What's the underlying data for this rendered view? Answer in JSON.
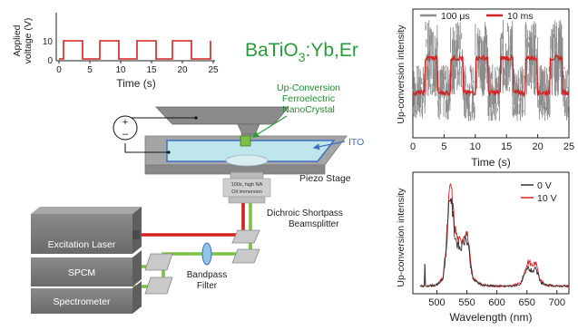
{
  "voltage_inset": {
    "ylabel_line1": "Applied",
    "ylabel_line2": "voltage (V)",
    "xlabel": "Time (s)",
    "x_ticks": [
      "0",
      "5",
      "10",
      "15",
      "20",
      "25"
    ],
    "y_ticks": [
      "0",
      "10"
    ]
  },
  "material": {
    "main": "BaTiO",
    "sub": "3",
    "rest": ":Yb,Er"
  },
  "labels": {
    "nanocrystal_1": "Up-Conversion",
    "nanocrystal_2": "Ferroelectric",
    "nanocrystal_3": "NanoCrystal",
    "ito": "ITO",
    "piezo_stage": "Piezo Stage",
    "objective_1": "100x, high NA",
    "objective_2": "Oil immersion",
    "dichroic_1": "Dichroic Shortpass",
    "dichroic_2": "Beamsplitter",
    "excitation_laser": "Excitation Laser",
    "spcm": "SPCM",
    "spectrometer": "Spectrometer",
    "bandpass_1": "Bandpass",
    "bandpass_2": "Filter",
    "plus": "+",
    "minus": "–"
  },
  "colors": {
    "laser_red": "#d42020",
    "emission_green": "#7cc242",
    "trace_gray": "#8c8c8c",
    "trace_red": "#d42020",
    "material_green": "#2a9a3a",
    "nanocrystal_label": "#1f8a2e",
    "ito_blue": "#3f6fc4",
    "ito_glass": "#bfe6ea",
    "box_gray": "#7d7d7d"
  },
  "chart_data": [
    {
      "type": "line",
      "title": "",
      "xlabel": "Time (s)",
      "ylabel": "Up-conversion intensity",
      "xlim": [
        0,
        25
      ],
      "x_ticks": [
        "0",
        "5",
        "10",
        "15",
        "20",
        "25"
      ],
      "legend_position": "top",
      "series": [
        {
          "name": "100 μs",
          "color": "#8c8c8c",
          "x": [
            0,
            2,
            4,
            6,
            8,
            10,
            12,
            14,
            16,
            18,
            20,
            22,
            24,
            25
          ],
          "y": [
            0.35,
            0.62,
            0.35,
            0.62,
            0.35,
            0.62,
            0.35,
            0.62,
            0.35,
            0.62,
            0.35,
            0.62,
            0.35,
            0.35
          ]
        },
        {
          "name": "10 ms",
          "color": "#d42020",
          "x": [
            0,
            2,
            4,
            6,
            8,
            10,
            12,
            14,
            16,
            18,
            20,
            22,
            24,
            25
          ],
          "y": [
            0.35,
            0.62,
            0.35,
            0.62,
            0.35,
            0.62,
            0.35,
            0.62,
            0.35,
            0.62,
            0.35,
            0.62,
            0.35,
            0.35
          ]
        }
      ]
    },
    {
      "type": "line",
      "title": "",
      "xlabel": "Wavelength (nm)",
      "ylabel": "Up-conversion intensity",
      "xlim": [
        460,
        720
      ],
      "x_ticks": [
        "500",
        "550",
        "600",
        "650",
        "700"
      ],
      "legend_position": "top-right",
      "series": [
        {
          "name": "0 V",
          "color": "#333333",
          "x": [
            480,
            500,
            510,
            515,
            520,
            523,
            526,
            530,
            535,
            540,
            545,
            548,
            552,
            556,
            560,
            575,
            600,
            625,
            640,
            648,
            652,
            656,
            660,
            664,
            668,
            672,
            680,
            700,
            720
          ],
          "y": [
            0.02,
            0.03,
            0.08,
            0.3,
            0.72,
            0.86,
            0.7,
            0.48,
            0.38,
            0.36,
            0.42,
            0.45,
            0.4,
            0.2,
            0.08,
            0.03,
            0.02,
            0.02,
            0.04,
            0.14,
            0.19,
            0.16,
            0.16,
            0.17,
            0.13,
            0.06,
            0.03,
            0.02,
            0.02
          ]
        },
        {
          "name": "10 V",
          "color": "#d42020",
          "x": [
            480,
            500,
            510,
            515,
            520,
            523,
            526,
            530,
            535,
            540,
            545,
            548,
            552,
            556,
            560,
            575,
            600,
            625,
            640,
            648,
            652,
            656,
            660,
            664,
            668,
            672,
            680,
            700,
            720
          ],
          "y": [
            0.02,
            0.03,
            0.09,
            0.35,
            0.8,
            0.96,
            0.78,
            0.55,
            0.44,
            0.42,
            0.48,
            0.52,
            0.46,
            0.24,
            0.09,
            0.03,
            0.02,
            0.02,
            0.05,
            0.18,
            0.25,
            0.22,
            0.21,
            0.23,
            0.18,
            0.08,
            0.03,
            0.02,
            0.02
          ]
        }
      ]
    }
  ]
}
